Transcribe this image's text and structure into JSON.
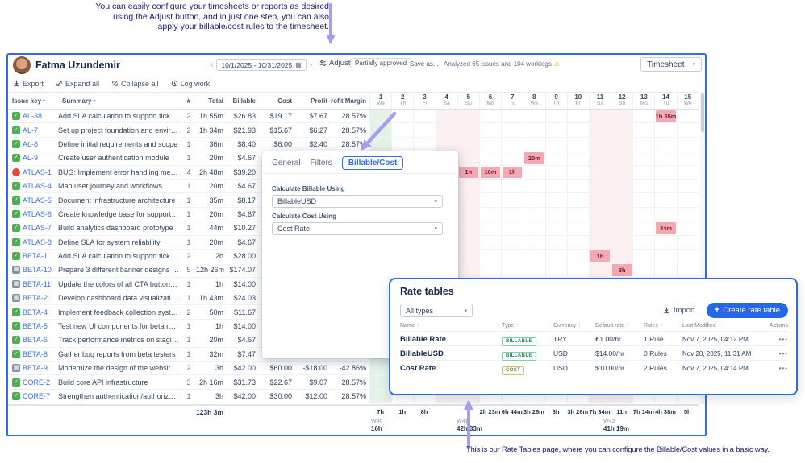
{
  "annotations": {
    "top": "You can easily configure your timesheets or reports as desired using the Adjust button, and in just one step, you can also apply your billable/cost rules to the timesheet.",
    "bottom": "This is our Rate Tables page, where you can configure the Billable/Cost values in a basic way."
  },
  "icons": {
    "chevron_left": "‹",
    "chevron_right": "›",
    "calendar": "▦",
    "caret_down": "▾",
    "warning": "⚠",
    "filter": "▾",
    "check": "✓",
    "grid": "▦",
    "plus": "+",
    "actions": "•••"
  },
  "colors": {
    "accent_blue": "#2e6de4",
    "arrow_purple": "#a89bf2",
    "annotation_navy": "#1c1a6e",
    "worklog_bg": "#f3a9b1",
    "worklog_text": "#7e1626",
    "weekend_bg": "#fcf0f0",
    "today_bg": "#e5f3e7"
  },
  "header": {
    "user_name": "Fatma Uzundemir",
    "date_range": "10/1/2025 - 10/31/2025",
    "adjust_label": "Adjust",
    "partially_approved_label": "Partially approved",
    "save_as_label": "Save as...",
    "analysis_text": "Analyzed 65 issues and 104 worklogs",
    "view_selector": "Timesheet"
  },
  "toolbar": {
    "export": "Export",
    "expand_all": "Expand all",
    "collapse_all": "Collapse all",
    "log_work": "Log work"
  },
  "table": {
    "columns": [
      "Issue key",
      "Summary",
      "#",
      "Total",
      "Billable",
      "Cost",
      "Profit",
      "Profit Margin"
    ],
    "days": [
      {
        "num": "1",
        "dow": "We"
      },
      {
        "num": "2",
        "dow": "Th"
      },
      {
        "num": "3",
        "dow": "Fr"
      },
      {
        "num": "4",
        "dow": "Sa"
      },
      {
        "num": "5",
        "dow": "Su"
      },
      {
        "num": "6",
        "dow": "Mo"
      },
      {
        "num": "7",
        "dow": "Tu"
      },
      {
        "num": "8",
        "dow": "We"
      },
      {
        "num": "9",
        "dow": "Th"
      },
      {
        "num": "10",
        "dow": "Fr"
      },
      {
        "num": "11",
        "dow": "Sa"
      },
      {
        "num": "12",
        "dow": "Su"
      },
      {
        "num": "13",
        "dow": "Mo"
      },
      {
        "num": "14",
        "dow": "Tu"
      },
      {
        "num": "15",
        "dow": "We"
      }
    ],
    "weekend_days": [
      3,
      4,
      10,
      11
    ],
    "highlight_day": 0,
    "rows": [
      {
        "key": "AL-38",
        "type": "task",
        "summary": "Add SLA calculation to support tickets",
        "count": "2",
        "total": "1h 55m",
        "billable": "$26.83",
        "cost": "$19.17",
        "profit": "$7.67",
        "margin": "28.57%"
      },
      {
        "key": "AL-7",
        "type": "task",
        "summary": "Set up project foundation and environment.",
        "count": "2",
        "total": "1h 34m",
        "billable": "$21.93",
        "cost": "$15.67",
        "profit": "$6.27",
        "margin": "28.57%"
      },
      {
        "key": "AL-8",
        "type": "task",
        "summary": "Define initial requirements and scope",
        "count": "1",
        "total": "36m",
        "billable": "$8.40",
        "cost": "$6.00",
        "profit": "$2.40",
        "margin": "28.57%"
      },
      {
        "key": "AL-9",
        "type": "task",
        "summary": "Create user authentication module",
        "count": "1",
        "total": "20m",
        "billable": "$4.67",
        "cost": "",
        "profit": "",
        "margin": ""
      },
      {
        "key": "ATLAS-1",
        "type": "bug",
        "summary": "BUG: Implement error handling mechanis...",
        "count": "4",
        "total": "2h 48m",
        "billable": "$39.20",
        "cost": "",
        "profit": "",
        "margin": ""
      },
      {
        "key": "ATLAS-4",
        "type": "task",
        "summary": "Map user journey and workflows",
        "count": "1",
        "total": "20m",
        "billable": "$4.67",
        "cost": "",
        "profit": "",
        "margin": ""
      },
      {
        "key": "ATLAS-5",
        "type": "task",
        "summary": "Document infrastructure architecture",
        "count": "1",
        "total": "35m",
        "billable": "$8.17",
        "cost": "",
        "profit": "",
        "margin": ""
      },
      {
        "key": "ATLAS-6",
        "type": "task",
        "summary": "Create knowledge base for support team",
        "count": "1",
        "total": "20m",
        "billable": "$4.67",
        "cost": "",
        "profit": "",
        "margin": ""
      },
      {
        "key": "ATLAS-7",
        "type": "task",
        "summary": "Build analytics dashboard prototype",
        "count": "1",
        "total": "44m",
        "billable": "$10.27",
        "cost": "",
        "profit": "",
        "margin": ""
      },
      {
        "key": "ATLAS-8",
        "type": "task",
        "summary": "Define SLA for system reliability",
        "count": "1",
        "total": "20m",
        "billable": "$4.67",
        "cost": "",
        "profit": "",
        "margin": ""
      },
      {
        "key": "BETA-1",
        "type": "task",
        "summary": "Add SLA calculation to support tickets",
        "count": "2",
        "total": "2h",
        "billable": "$28.00",
        "cost": "",
        "profit": "",
        "margin": ""
      },
      {
        "key": "BETA-10",
        "type": "design",
        "summary": "Prepare 3 different banner designs for th...",
        "count": "5",
        "total": "12h 26m",
        "billable": "$174.07",
        "cost": "",
        "profit": "",
        "margin": ""
      },
      {
        "key": "BETA-11",
        "type": "design",
        "summary": "Update the colors of all CTA buttons on t...",
        "count": "1",
        "total": "1h",
        "billable": "$14.00",
        "cost": "",
        "profit": "",
        "margin": ""
      },
      {
        "key": "BETA-2",
        "type": "design",
        "summary": "Develop dashboard data visualization mo...",
        "count": "1",
        "total": "1h 43m",
        "billable": "$24.03",
        "cost": "",
        "profit": "",
        "margin": ""
      },
      {
        "key": "BETA-4",
        "type": "task",
        "summary": "Implement feedback collection system",
        "count": "2",
        "total": "50m",
        "billable": "$11.67",
        "cost": "",
        "profit": "",
        "margin": ""
      },
      {
        "key": "BETA-5",
        "type": "task",
        "summary": "Test new UI components for beta release",
        "count": "1",
        "total": "1h",
        "billable": "$14.00",
        "cost": "",
        "profit": "",
        "margin": ""
      },
      {
        "key": "BETA-6",
        "type": "task",
        "summary": "Track performance metrics on staging",
        "count": "1",
        "total": "20m",
        "billable": "$4.67",
        "cost": "",
        "profit": "",
        "margin": ""
      },
      {
        "key": "BETA-8",
        "type": "task",
        "summary": "Gather bug reports from beta testers",
        "count": "1",
        "total": "32m",
        "billable": "$7.47",
        "cost": "",
        "profit": "",
        "margin": ""
      },
      {
        "key": "BETA-9",
        "type": "design",
        "summary": "Modernize the design of the website's ho...",
        "count": "2",
        "total": "3h",
        "billable": "$42.00",
        "cost": "$60.00",
        "profit": "-$18.00",
        "margin": "-42.86%"
      },
      {
        "key": "CORE-2",
        "type": "task",
        "summary": "Build core API infrastructure",
        "count": "3",
        "total": "2h 16m",
        "billable": "$31.73",
        "cost": "$22.67",
        "profit": "$9.07",
        "margin": "28.57%"
      },
      {
        "key": "CORE-7",
        "type": "task",
        "summary": "Strengthen authentication/authorization l...",
        "count": "1",
        "total": "3h",
        "billable": "$42.00",
        "cost": "$30.00",
        "profit": "$12.00",
        "margin": "28.57%"
      }
    ],
    "cells": [
      {
        "key": "AL-38",
        "day": 13,
        "value": "1h 55m"
      },
      {
        "key": "AL-9",
        "day": 7,
        "value": "20m"
      },
      {
        "key": "ATLAS-1",
        "day": 4,
        "value": "1h"
      },
      {
        "key": "ATLAS-1",
        "day": 5,
        "value": "10m"
      },
      {
        "key": "ATLAS-1",
        "day": 6,
        "value": "1h"
      },
      {
        "key": "ATLAS-7",
        "day": 13,
        "value": "44m"
      },
      {
        "key": "BETA-1",
        "day": 10,
        "value": "1h"
      },
      {
        "key": "BETA-10",
        "day": 11,
        "value": "3h"
      }
    ],
    "footer": {
      "grand_total": "123h 3m",
      "day_totals": [
        "7h",
        "1h",
        "8h",
        "",
        "",
        "2h 23m",
        "6h 44m",
        "3h 26m",
        "8h",
        "3h 26m",
        "7h 34m",
        "11h",
        "7h 14m",
        "4h 38m",
        "5h"
      ],
      "weeks": [
        {
          "label": "W40",
          "total": "16h"
        },
        {
          "label": "W41",
          "total": "42h 33m"
        },
        {
          "label": "W42",
          "total": "41h 19m"
        }
      ]
    }
  },
  "modal": {
    "tabs": [
      "General",
      "Filters",
      "Billable/Cost"
    ],
    "active_tab": "Billable/Cost",
    "billable_label": "Calculate Billable Using",
    "billable_value": "BillableUSD",
    "cost_label": "Calculate Cost Using",
    "cost_value": "Cost Rate"
  },
  "rate_tables": {
    "title": "Rate tables",
    "filter_value": "All types",
    "import_label": "Import",
    "create_label": "Create rate table",
    "columns": [
      "Name",
      "Type",
      "Currency",
      "Default rate",
      "Rules",
      "Last Modified",
      "Actions"
    ],
    "rows": [
      {
        "name": "Billable Rate",
        "type": "BILLABLE",
        "currency": "TRY",
        "default_rate": "₺1.00/hr",
        "rules": "1 Rule",
        "modified": "Nov 7, 2025, 04:12 PM"
      },
      {
        "name": "BillableUSD",
        "type": "BILLABLE",
        "currency": "USD",
        "default_rate": "$14.00/hr",
        "rules": "0 Rules",
        "modified": "Nov 20, 2025, 11:31 AM"
      },
      {
        "name": "Cost Rate",
        "type": "COST",
        "currency": "USD",
        "default_rate": "$10.00/hr",
        "rules": "2 Rules",
        "modified": "Nov 7, 2025, 04:14 PM"
      }
    ]
  }
}
